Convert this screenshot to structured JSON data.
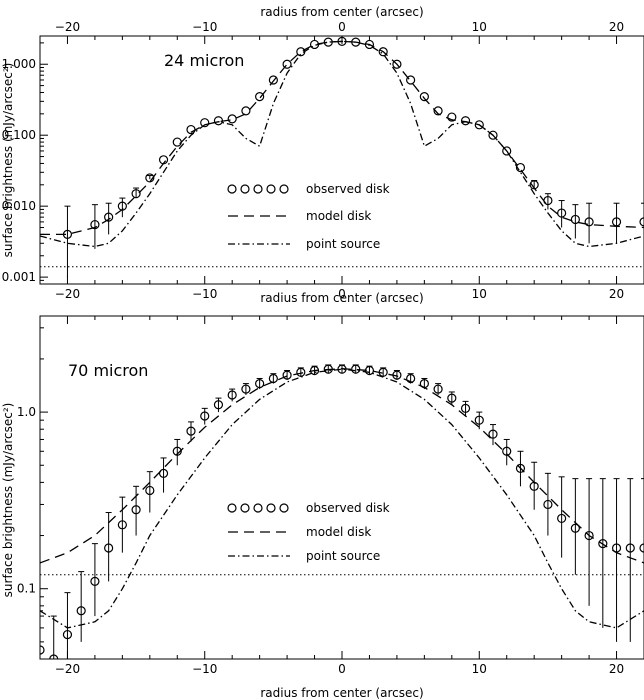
{
  "chart_data": [
    {
      "type": "scatter",
      "title": "24 micron",
      "xlabel": "radius from center (arcsec)",
      "x2label": "radius from center (arcsec)",
      "ylabel": "surface brightness (mJy/arcsec²)",
      "xlim": [
        -22,
        22
      ],
      "ylim": [
        0.0008,
        2.5
      ],
      "yscale": "log",
      "xticks": [
        -20,
        -10,
        0,
        10,
        20
      ],
      "xtick_labels": [
        "−20",
        "−10",
        "0",
        "10",
        "20"
      ],
      "yticks": [
        0.001,
        0.01,
        0.1,
        1.0
      ],
      "ytick_labels": [
        "0.001",
        "0.010",
        "0.100",
        "1.000"
      ],
      "legend": [
        {
          "label": "observed disk",
          "style": "circles"
        },
        {
          "label": "model disk",
          "style": "dashed"
        },
        {
          "label": "point source",
          "style": "dash-dot"
        }
      ],
      "series": {
        "observed": {
          "x": [
            -20,
            -18,
            -17,
            -16,
            -15,
            -14,
            -13,
            -12,
            -11,
            -10,
            -9,
            -8,
            -7,
            -6,
            -5,
            -4,
            -3,
            -2,
            -1,
            0,
            1,
            2,
            3,
            4,
            5,
            6,
            7,
            8,
            9,
            10,
            11,
            12,
            13,
            14,
            15,
            16,
            17,
            18,
            20,
            22
          ],
          "y": [
            0.004,
            0.0055,
            0.007,
            0.01,
            0.015,
            0.025,
            0.045,
            0.08,
            0.12,
            0.15,
            0.16,
            0.17,
            0.22,
            0.35,
            0.6,
            1.0,
            1.5,
            1.9,
            2.05,
            2.1,
            2.05,
            1.9,
            1.5,
            1.0,
            0.6,
            0.35,
            0.22,
            0.18,
            0.16,
            0.14,
            0.1,
            0.06,
            0.035,
            0.02,
            0.012,
            0.008,
            0.0065,
            0.006,
            0.006,
            0.006
          ],
          "err_low": [
            0.003,
            0.003,
            0.003,
            0.003,
            0.002,
            0.001,
            0,
            0,
            0,
            0,
            0,
            0,
            0,
            0,
            0,
            0,
            0,
            0,
            0,
            0,
            0,
            0,
            0,
            0,
            0,
            0,
            0,
            0,
            0,
            0,
            0,
            0,
            0,
            0.002,
            0.003,
            0.003,
            0.003,
            0.003,
            0.003,
            0.003
          ],
          "err_high": [
            0.006,
            0.005,
            0.004,
            0.003,
            0.003,
            0.002,
            0,
            0,
            0,
            0,
            0,
            0,
            0,
            0,
            0,
            0,
            0,
            0,
            0,
            0,
            0,
            0,
            0,
            0,
            0,
            0,
            0,
            0,
            0,
            0,
            0,
            0,
            0,
            0.003,
            0.003,
            0.004,
            0.004,
            0.005,
            0.005,
            0.005
          ]
        },
        "model_disk": {
          "x": [
            -22,
            -20,
            -18,
            -17,
            -16,
            -15,
            -14,
            -13,
            -12,
            -11,
            -10,
            -9,
            -8,
            -7,
            -6,
            -5,
            -4,
            -3,
            -2,
            -1,
            0,
            1,
            2,
            3,
            4,
            5,
            6,
            7,
            8,
            9,
            10,
            11,
            12,
            13,
            14,
            15,
            16,
            17,
            18,
            20,
            22
          ],
          "y": [
            0.004,
            0.004,
            0.005,
            0.0065,
            0.009,
            0.014,
            0.022,
            0.04,
            0.07,
            0.11,
            0.14,
            0.155,
            0.165,
            0.2,
            0.33,
            0.58,
            1.0,
            1.5,
            1.9,
            2.05,
            2.1,
            2.05,
            1.9,
            1.5,
            1.0,
            0.58,
            0.33,
            0.2,
            0.165,
            0.155,
            0.14,
            0.1,
            0.06,
            0.033,
            0.018,
            0.01,
            0.007,
            0.006,
            0.0055,
            0.0052,
            0.005
          ]
        },
        "point_source": {
          "x": [
            -22,
            -20,
            -18,
            -17,
            -16,
            -15,
            -14,
            -13,
            -12,
            -11,
            -10,
            -9,
            -8,
            -7,
            -6,
            -5,
            -4,
            -3,
            -2,
            -1,
            0,
            1,
            2,
            3,
            4,
            5,
            6,
            7,
            8,
            9,
            10,
            11,
            12,
            13,
            14,
            15,
            16,
            17,
            18,
            20,
            22
          ],
          "y": [
            0.0038,
            0.003,
            0.0027,
            0.003,
            0.0045,
            0.008,
            0.015,
            0.03,
            0.06,
            0.1,
            0.14,
            0.155,
            0.14,
            0.09,
            0.07,
            0.28,
            0.75,
            1.4,
            1.85,
            2.05,
            2.1,
            2.05,
            1.85,
            1.4,
            0.75,
            0.28,
            0.07,
            0.09,
            0.14,
            0.155,
            0.14,
            0.1,
            0.06,
            0.03,
            0.015,
            0.008,
            0.0045,
            0.003,
            0.0027,
            0.003,
            0.0038
          ]
        },
        "background": {
          "y": 0.0014
        }
      }
    },
    {
      "type": "scatter",
      "title": "70 micron",
      "xlabel": "radius from center (arcsec)",
      "ylabel": "surface brightness (mJy/arcsec²)",
      "xlim": [
        -22,
        22
      ],
      "ylim": [
        0.04,
        3.5
      ],
      "yscale": "log",
      "xticks": [
        -20,
        -10,
        0,
        10,
        20
      ],
      "xtick_labels": [
        "−20",
        "−10",
        "0",
        "10",
        "20"
      ],
      "yticks": [
        0.1,
        1.0
      ],
      "ytick_labels": [
        "0.1",
        "1.0"
      ],
      "legend": [
        {
          "label": "observed disk",
          "style": "circles"
        },
        {
          "label": "model disk",
          "style": "dashed"
        },
        {
          "label": "point source",
          "style": "dash-dot"
        }
      ],
      "series": {
        "observed": {
          "x": [
            -22,
            -21,
            -20,
            -19,
            -18,
            -17,
            -16,
            -15,
            -14,
            -13,
            -12,
            -11,
            -10,
            -9,
            -8,
            -7,
            -6,
            -5,
            -4,
            -3,
            -2,
            -1,
            0,
            1,
            2,
            3,
            4,
            5,
            6,
            7,
            8,
            9,
            10,
            11,
            12,
            13,
            14,
            15,
            16,
            17,
            18,
            19,
            20,
            21,
            22
          ],
          "y": [
            0.045,
            0.04,
            0.055,
            0.075,
            0.11,
            0.17,
            0.23,
            0.28,
            0.36,
            0.45,
            0.6,
            0.78,
            0.95,
            1.1,
            1.25,
            1.35,
            1.45,
            1.55,
            1.62,
            1.68,
            1.72,
            1.75,
            1.75,
            1.75,
            1.72,
            1.68,
            1.62,
            1.55,
            1.45,
            1.35,
            1.2,
            1.05,
            0.9,
            0.75,
            0.6,
            0.48,
            0.38,
            0.3,
            0.25,
            0.22,
            0.2,
            0.18,
            0.17,
            0.17,
            0.17
          ],
          "err_low": [
            0.01,
            0.01,
            0.015,
            0.025,
            0.04,
            0.06,
            0.07,
            0.08,
            0.09,
            0.1,
            0.1,
            0.1,
            0.1,
            0.1,
            0.1,
            0.1,
            0.1,
            0.1,
            0.1,
            0.1,
            0.1,
            0.1,
            0.1,
            0.1,
            0.1,
            0.1,
            0.1,
            0.1,
            0.1,
            0.1,
            0.1,
            0.1,
            0.1,
            0.1,
            0.1,
            0.1,
            0.1,
            0.1,
            0.1,
            0.1,
            0.12,
            0.12,
            0.12,
            0.12,
            0.12
          ],
          "err_high": [
            0.03,
            0.03,
            0.04,
            0.05,
            0.07,
            0.1,
            0.1,
            0.1,
            0.1,
            0.1,
            0.1,
            0.1,
            0.1,
            0.1,
            0.1,
            0.1,
            0.1,
            0.1,
            0.1,
            0.1,
            0.1,
            0.1,
            0.1,
            0.1,
            0.1,
            0.1,
            0.1,
            0.1,
            0.1,
            0.1,
            0.1,
            0.1,
            0.1,
            0.1,
            0.1,
            0.12,
            0.14,
            0.15,
            0.18,
            0.2,
            0.22,
            0.24,
            0.25,
            0.25,
            0.25
          ]
        },
        "model_disk": {
          "x": [
            -22,
            -20,
            -18,
            -16,
            -14,
            -12,
            -10,
            -8,
            -6,
            -4,
            -2,
            0,
            2,
            4,
            6,
            8,
            10,
            12,
            14,
            16,
            18,
            20,
            22
          ],
          "y": [
            0.14,
            0.16,
            0.2,
            0.28,
            0.4,
            0.58,
            0.82,
            1.1,
            1.38,
            1.6,
            1.72,
            1.76,
            1.72,
            1.6,
            1.38,
            1.1,
            0.82,
            0.58,
            0.4,
            0.28,
            0.2,
            0.16,
            0.14
          ]
        },
        "point_source": {
          "x": [
            -22,
            -20,
            -18,
            -17,
            -16,
            -15,
            -14,
            -12,
            -10,
            -8,
            -6,
            -4,
            -2,
            0,
            2,
            4,
            6,
            8,
            10,
            12,
            14,
            15,
            16,
            17,
            18,
            20,
            22
          ],
          "y": [
            0.075,
            0.06,
            0.065,
            0.075,
            0.1,
            0.14,
            0.2,
            0.34,
            0.55,
            0.85,
            1.18,
            1.48,
            1.68,
            1.75,
            1.68,
            1.48,
            1.18,
            0.85,
            0.55,
            0.34,
            0.2,
            0.14,
            0.1,
            0.075,
            0.065,
            0.06,
            0.075
          ]
        },
        "background": {
          "y": 0.12
        }
      }
    }
  ]
}
